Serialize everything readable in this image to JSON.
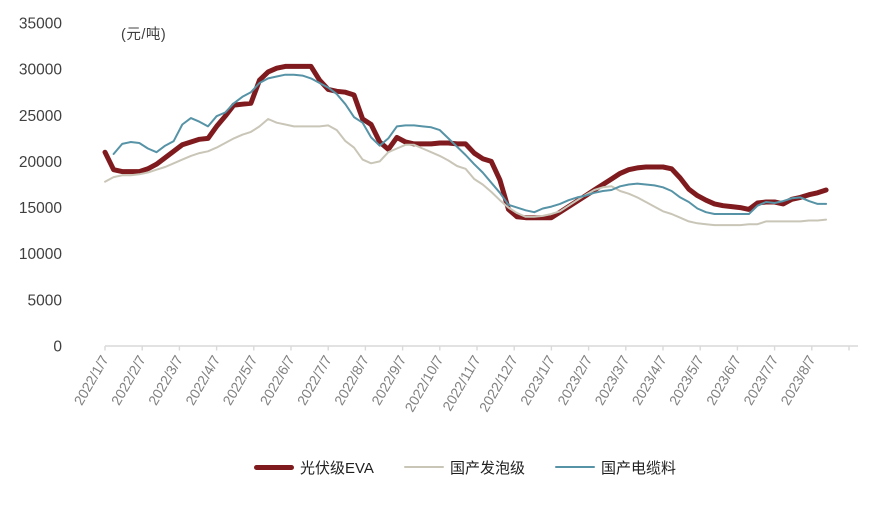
{
  "chart_data": {
    "type": "line",
    "title": "",
    "xlabel": "",
    "ylabel": "",
    "unit_label": "(元/吨)",
    "ylim": [
      0,
      35000
    ],
    "y_ticks": [
      0,
      5000,
      10000,
      15000,
      20000,
      25000,
      30000,
      35000
    ],
    "grid": "off",
    "legend_position": "bottom-center",
    "axis_color": "#d9d9d9",
    "y_label_color": "#404040",
    "x_label_color": "#808080",
    "x_interval": "weekly",
    "x_start_date": "2022/1/7",
    "x_tick_labels": [
      "2022/1/7",
      "2022/2/7",
      "2022/3/7",
      "2022/4/7",
      "2022/5/7",
      "2022/6/7",
      "2022/7/7",
      "2022/8/7",
      "2022/9/7",
      "2022/10/7",
      "2022/11/7",
      "2022/12/7",
      "2023/1/7",
      "2023/2/7",
      "2023/3/7",
      "2023/4/7",
      "2023/5/7",
      "2023/6/7",
      "2023/7/7",
      "2023/8/7"
    ],
    "series": [
      {
        "name": "光伏级EVA",
        "color": "#7f1b1e",
        "stroke_width": 5,
        "values": [
          21000,
          19100,
          18900,
          18900,
          18900,
          19200,
          19700,
          20400,
          21100,
          21800,
          22100,
          22400,
          22500,
          23800,
          24900,
          26100,
          26200,
          26300,
          28800,
          29700,
          30100,
          30300,
          30300,
          30300,
          30300,
          28800,
          27800,
          27600,
          27500,
          27200,
          24600,
          24000,
          22100,
          21300,
          22600,
          22100,
          21900,
          21900,
          21900,
          22000,
          22000,
          21900,
          21900,
          20900,
          20300,
          20000,
          18000,
          14800,
          14000,
          13900,
          13900,
          13900,
          13900,
          14500,
          15100,
          15700,
          16300,
          16900,
          17500,
          18100,
          18700,
          19100,
          19300,
          19400,
          19400,
          19400,
          19200,
          18200,
          17000,
          16300,
          15800,
          15400,
          15200,
          15100,
          15000,
          14800,
          15500,
          15600,
          15600,
          15400,
          15900,
          16100,
          16400,
          16600,
          16900
        ]
      },
      {
        "name": "国产发泡级",
        "color": "#c9c6b8",
        "stroke_width": 2,
        "values": [
          17800,
          18300,
          18500,
          18500,
          18600,
          18800,
          19100,
          19400,
          19800,
          20200,
          20600,
          20900,
          21100,
          21500,
          22000,
          22500,
          22900,
          23200,
          23800,
          24600,
          24200,
          24000,
          23800,
          23800,
          23800,
          23800,
          23900,
          23400,
          22200,
          21500,
          20200,
          19800,
          20000,
          21000,
          21400,
          21800,
          21800,
          21400,
          21000,
          20600,
          20100,
          19500,
          19200,
          18100,
          17500,
          16700,
          15800,
          15000,
          14400,
          14000,
          14000,
          14100,
          14300,
          14600,
          15200,
          15800,
          16400,
          16900,
          17200,
          17300,
          16800,
          16500,
          16100,
          15600,
          15100,
          14600,
          14300,
          13900,
          13500,
          13300,
          13200,
          13100,
          13100,
          13100,
          13100,
          13200,
          13200,
          13500,
          13500,
          13500,
          13500,
          13500,
          13600,
          13600,
          13700
        ]
      },
      {
        "name": "国产电缆料",
        "color": "#5693a6",
        "stroke_width": 2,
        "values": [
          null,
          20800,
          21900,
          22100,
          22000,
          21400,
          21000,
          21700,
          22200,
          24000,
          24700,
          24300,
          23800,
          24900,
          25300,
          26300,
          27000,
          27500,
          28500,
          29000,
          29200,
          29400,
          29400,
          29300,
          29000,
          28500,
          28000,
          27300,
          26200,
          24800,
          24200,
          22600,
          21700,
          22500,
          23800,
          23900,
          23900,
          23800,
          23700,
          23400,
          22500,
          21600,
          20700,
          19700,
          18800,
          17700,
          16600,
          15300,
          15000,
          14700,
          14500,
          14900,
          15100,
          15400,
          15800,
          16100,
          16300,
          16600,
          16800,
          16900,
          17300,
          17500,
          17600,
          17500,
          17400,
          17200,
          16800,
          16100,
          15600,
          14900,
          14500,
          14300,
          14300,
          14300,
          14300,
          14300,
          15200,
          15600,
          15500,
          15700,
          16000,
          16100,
          15700,
          15400,
          15400
        ]
      }
    ]
  }
}
